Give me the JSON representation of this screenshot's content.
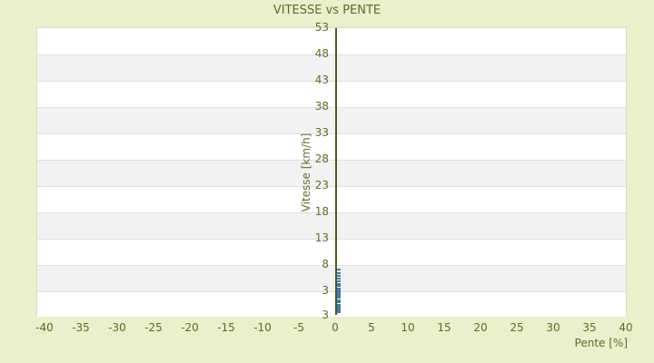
{
  "chart_data": {
    "type": "scatter",
    "title": "VITESSE vs PENTE",
    "xlabel": "Pente [%]",
    "ylabel": "Vitesse [km/h]",
    "x_ticks": [
      -40,
      -35,
      -30,
      -25,
      -20,
      -15,
      -10,
      -5,
      0,
      5,
      10,
      15,
      20,
      25,
      30,
      35,
      40
    ],
    "y_ticks": [
      53,
      48,
      43,
      38,
      33,
      28,
      23,
      18,
      13,
      8,
      3
    ],
    "y_edge_label": "3",
    "xlim": [
      -41.1,
      40.1
    ],
    "ylim": [
      -1.8,
      53
    ],
    "grid": "horizontal-bands",
    "legend": "none",
    "series": [
      {
        "name": "vitesse",
        "points": [
          [
            0,
            7.1
          ],
          [
            0,
            6.4
          ],
          [
            0,
            5.9
          ],
          [
            0,
            5.4
          ],
          [
            0,
            4.9
          ],
          [
            0,
            4.3
          ],
          [
            0,
            3.95
          ],
          [
            0,
            3.6
          ],
          [
            0,
            3.25
          ],
          [
            0,
            2.9
          ],
          [
            0,
            2.55
          ],
          [
            0,
            2.2
          ],
          [
            0,
            1.85
          ],
          [
            0,
            1.2
          ],
          [
            0,
            0.85
          ],
          [
            0,
            0.5
          ],
          [
            0,
            0.15
          ],
          [
            0,
            -0.2
          ],
          [
            0,
            -0.55
          ],
          [
            0,
            -0.9
          ]
        ]
      }
    ],
    "colors": {
      "background": "#eaefcc",
      "text": "#5f6b24",
      "axis_line": "#4d5a15",
      "band_alt": "#f2f2f2",
      "band_main": "#ffffff",
      "gridline": "#e0e0e0",
      "plot_border": "#d6d6d6",
      "marker": "#3e7ab5"
    }
  }
}
